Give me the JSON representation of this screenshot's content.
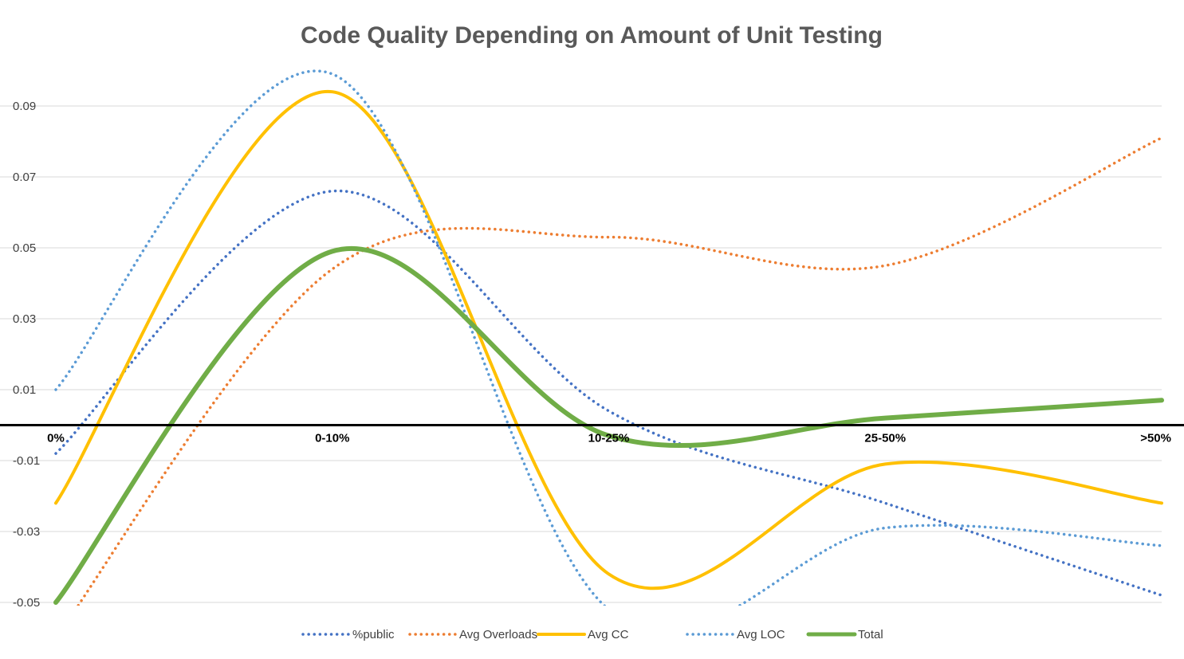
{
  "chart_data": {
    "type": "line",
    "title": "Code Quality Depending on Amount of Unit Testing",
    "xlabel": "",
    "ylabel": "",
    "categories": [
      "0%",
      "0-10%",
      "10-25%",
      "25-50%",
      ">50%"
    ],
    "ylim": [
      -0.05,
      0.1
    ],
    "yticks": [
      0.09,
      0.07,
      0.05,
      0.03,
      0.01,
      -0.01,
      -0.03,
      -0.05
    ],
    "ytick_labels": [
      "0.09",
      "0.07",
      "0.05",
      "0.03",
      "0.01",
      "-0.01",
      "-0.03",
      "-0.05"
    ],
    "grid": true,
    "smooth": true,
    "legend_position": "bottom",
    "series": [
      {
        "name": "%public",
        "values": [
          -0.008,
          0.066,
          0.004,
          -0.022,
          -0.048
        ],
        "color": "#4472C4",
        "style": "dotted"
      },
      {
        "name": "Avg Overloads",
        "values": [
          -0.06,
          0.044,
          0.053,
          0.045,
          0.081
        ],
        "color": "#ED7D31",
        "style": "dotted"
      },
      {
        "name": "Avg CC",
        "values": [
          -0.022,
          0.094,
          -0.042,
          -0.011,
          -0.022
        ],
        "color": "#FFC000",
        "style": "solid"
      },
      {
        "name": "Avg LOC",
        "values": [
          0.01,
          0.099,
          -0.052,
          -0.029,
          -0.034
        ],
        "color": "#5B9BD5",
        "style": "dotted"
      },
      {
        "name": "Total",
        "values": [
          -0.05,
          0.049,
          -0.003,
          0.002,
          0.007
        ],
        "color": "#70AD47",
        "style": "thick"
      }
    ]
  }
}
